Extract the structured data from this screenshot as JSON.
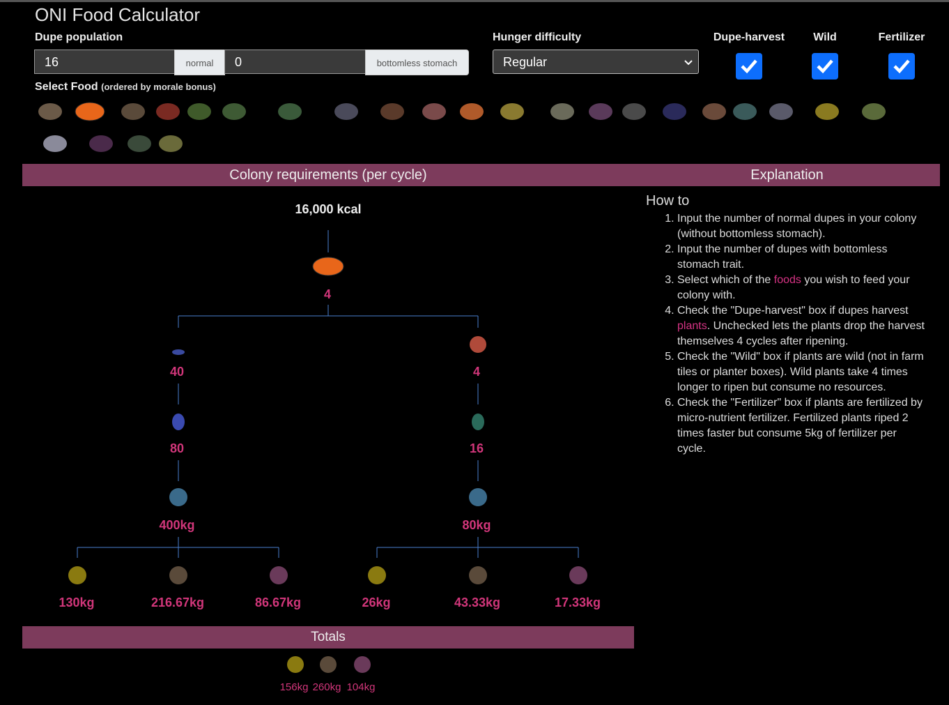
{
  "header": {
    "title": "ONI Food Calculator"
  },
  "form": {
    "population_label": "Dupe population",
    "normal_value": "16",
    "normal_label": "normal",
    "bottomless_value": "0",
    "bottomless_label": "bottomless stomach",
    "hunger_label": "Hunger difficulty",
    "hunger_value": "Regular",
    "checkboxes": [
      {
        "label": "Dupe-harvest",
        "checked": true
      },
      {
        "label": "Wild",
        "checked": true
      },
      {
        "label": "Fertilizer",
        "checked": true
      }
    ],
    "select_food_label": "Select Food",
    "select_food_note": "(ordered by morale bonus)"
  },
  "requirements": {
    "title": "Colony requirements (per cycle)",
    "kcal": "16,000 kcal",
    "root": "4",
    "branches": [
      {
        "food": "40",
        "plant": "80",
        "resource": "400kg",
        "inputs": [
          "130kg",
          "216.67kg",
          "86.67kg"
        ]
      },
      {
        "food": "4",
        "plant": "16",
        "resource": "80kg",
        "inputs": [
          "26kg",
          "43.33kg",
          "17.33kg"
        ]
      }
    ]
  },
  "totals": {
    "title": "Totals",
    "values": [
      "156kg",
      "260kg",
      "104kg"
    ]
  },
  "explanation": {
    "title": "Explanation",
    "heading": "How to",
    "steps": [
      [
        "Input the number of normal dupes in your colony (without bottomless stomach)."
      ],
      [
        "Input the number of dupes with bottomless stomach trait."
      ],
      [
        "Select which of the ",
        "foods",
        " you wish to feed your colony with."
      ],
      [
        "Check the \"Dupe-harvest\" box if dupes harvest ",
        "plants",
        ". Unchecked lets the plants drop the harvest themselves 4 cycles after ripening."
      ],
      [
        "Check the \"Wild\" box if plants are wild (not in farm tiles or planter boxes). Wild plants take 4 times longer to ripen but consume no resources."
      ],
      [
        "Check the \"Fertilizer\" box if plants are fertilized by micro-nutrient fertilizer. Fertilized plants riped 2 times faster but consume 5kg of fertilizer per cycle."
      ]
    ]
  }
}
